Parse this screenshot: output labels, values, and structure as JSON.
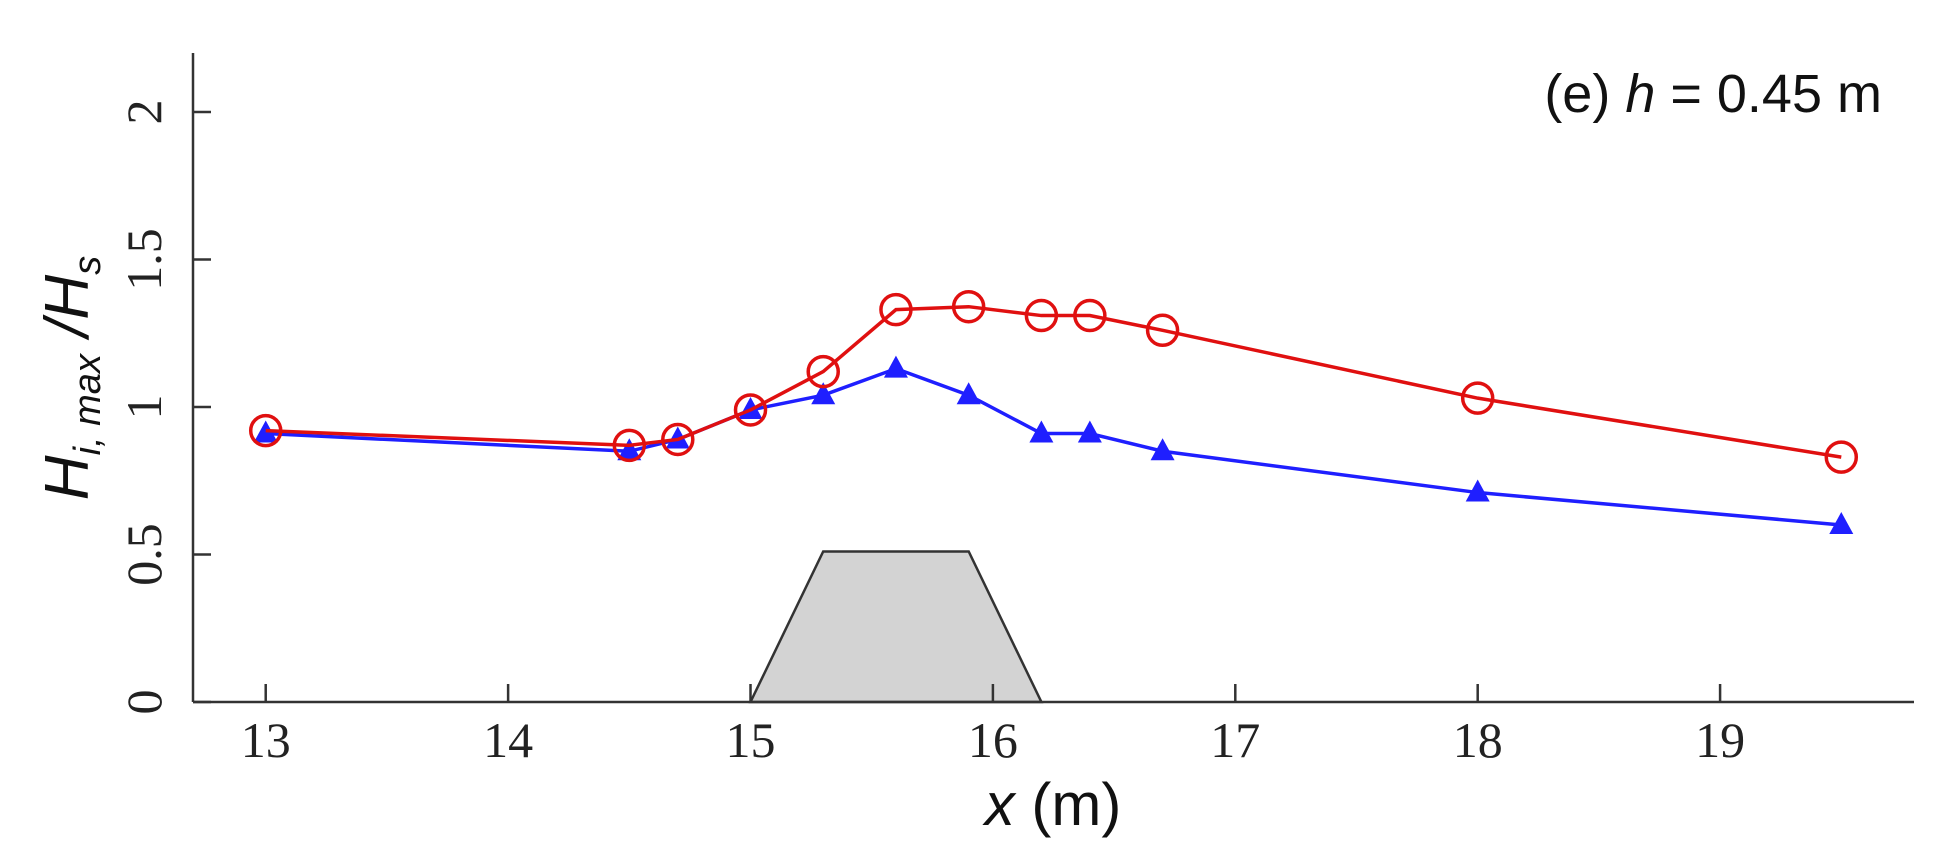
{
  "chart_data": {
    "type": "line",
    "annotation": {
      "prefix": "(e) ",
      "variable": "h",
      "suffix": " = 0.45 m"
    },
    "x_label": {
      "variable": "x",
      "unit": " (m)"
    },
    "y_label": {
      "main": "H",
      "sub": "i, max",
      "slash": " /H",
      "sub2": "s"
    },
    "x": [
      13,
      14.5,
      14.7,
      15,
      15.3,
      15.6,
      15.9,
      16.2,
      16.4,
      16.7,
      18,
      19.5
    ],
    "series": [
      {
        "color": "#1f1fff",
        "marker": "triangle",
        "values": [
          0.91,
          0.85,
          0.89,
          0.99,
          1.04,
          1.13,
          1.04,
          0.91,
          0.91,
          0.85,
          0.71,
          0.6
        ]
      },
      {
        "color": "#e01010",
        "marker": "circle",
        "values": [
          0.92,
          0.87,
          0.89,
          0.99,
          1.12,
          1.33,
          1.34,
          1.31,
          1.31,
          1.26,
          1.03,
          0.83
        ]
      }
    ],
    "xlim": [
      12.7,
      19.8
    ],
    "ylim": [
      0,
      2.2
    ],
    "xticks": [
      13,
      14,
      15,
      16,
      17,
      18,
      19
    ],
    "yticks": [
      0,
      0.5,
      1,
      1.5,
      2
    ]
  }
}
